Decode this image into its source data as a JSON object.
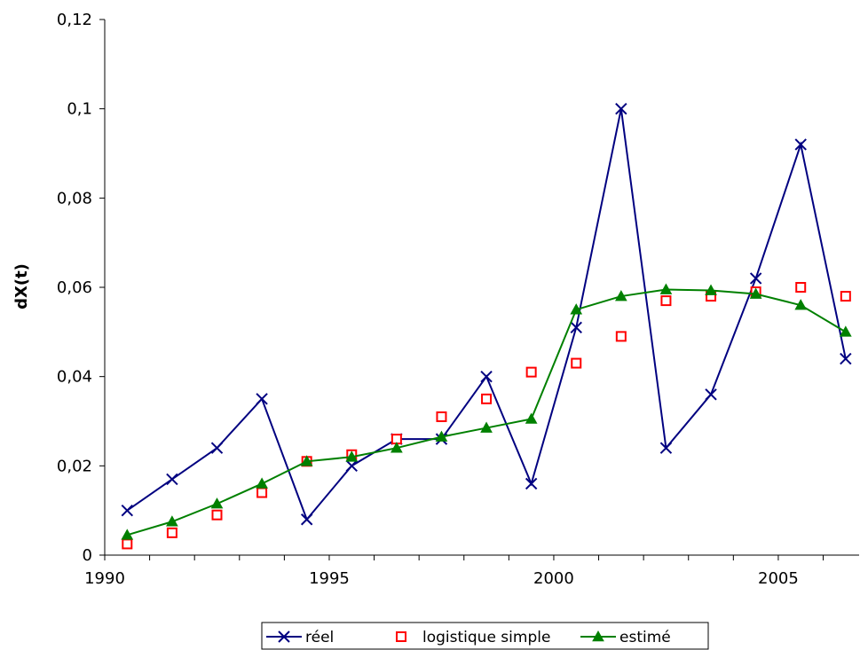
{
  "chart_data": {
    "type": "line",
    "title": "",
    "xlabel": "",
    "ylabel": "dX(t)",
    "xlim": [
      1990,
      2006.8
    ],
    "ylim": [
      0,
      0.12
    ],
    "y_ticks": [
      0,
      0.02,
      0.04,
      0.06,
      0.08,
      0.1,
      0.12
    ],
    "y_tick_labels": [
      "0",
      "0,02",
      "0,04",
      "0,06",
      "0,08",
      "0,1",
      "0,12"
    ],
    "x_ticks": [
      1990,
      1995,
      2000,
      2005
    ],
    "x_tick_labels": [
      "1990",
      "1995",
      "2000",
      "2005"
    ],
    "x": [
      1990.5,
      1991.5,
      1992.5,
      1993.5,
      1994.5,
      1995.5,
      1996.5,
      1997.5,
      1998.5,
      1999.5,
      2000.5,
      2001.5,
      2002.5,
      2003.5,
      2004.5,
      2005.5,
      2006.5
    ],
    "series": [
      {
        "name": "réel",
        "color": "#000080",
        "marker": "x",
        "line": true,
        "values": [
          0.01,
          0.017,
          0.024,
          0.035,
          0.008,
          0.02,
          0.026,
          0.026,
          0.04,
          0.016,
          0.051,
          0.1,
          0.024,
          0.036,
          0.062,
          0.092,
          0.044
        ]
      },
      {
        "name": "logistique simple",
        "color": "#ff0000",
        "marker": "square",
        "line": false,
        "values": [
          0.0025,
          0.005,
          0.009,
          0.014,
          0.021,
          0.0225,
          0.026,
          0.031,
          0.035,
          0.041,
          0.043,
          0.049,
          0.057,
          0.058,
          0.059,
          0.06,
          0.058
        ]
      },
      {
        "name": "estimé",
        "color": "#008000",
        "marker": "triangle",
        "line": true,
        "values": [
          0.0045,
          0.0075,
          0.0115,
          0.016,
          0.021,
          0.022,
          0.024,
          0.0265,
          0.0285,
          0.0305,
          0.055,
          0.058,
          0.0595,
          0.0593,
          0.0585,
          0.056,
          0.05
        ]
      }
    ],
    "grid": false,
    "legend_position": "bottom"
  }
}
